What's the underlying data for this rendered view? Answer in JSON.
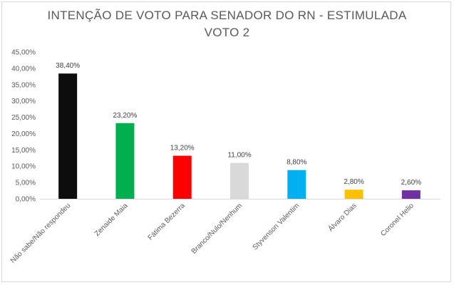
{
  "chart_data": {
    "type": "bar",
    "title_line1": "INTENÇÃO DE VOTO PARA SENADOR DO RN - ESTIMULADA",
    "title_line2": "VOTO 2",
    "categories": [
      "Não sabe/Não respondeu",
      "Zenaide Maia",
      "Fátima Bezerra",
      "Branco/Nulo/Nenhum",
      "Styvenson Valentim",
      "Álvaro Dias",
      "Coronel Helio"
    ],
    "values": [
      38.4,
      23.2,
      13.2,
      11.0,
      8.8,
      2.8,
      2.6
    ],
    "data_labels": [
      "38,40%",
      "23,20%",
      "13,20%",
      "11,00%",
      "8,80%",
      "2,80%",
      "2,60%"
    ],
    "colors": [
      "#0d0d0d",
      "#00b050",
      "#ff0000",
      "#d9d9d9",
      "#00b0f0",
      "#ffc000",
      "#7030a0"
    ],
    "ylim": [
      0,
      45
    ],
    "yticks": [
      0,
      5,
      10,
      15,
      20,
      25,
      30,
      35,
      40,
      45
    ],
    "ytick_labels": [
      "0,00%",
      "5,00%",
      "10,00%",
      "15,00%",
      "20,00%",
      "25,00%",
      "30,00%",
      "35,00%",
      "40,00%",
      "45,00%"
    ],
    "grid": false,
    "legend": "none"
  }
}
